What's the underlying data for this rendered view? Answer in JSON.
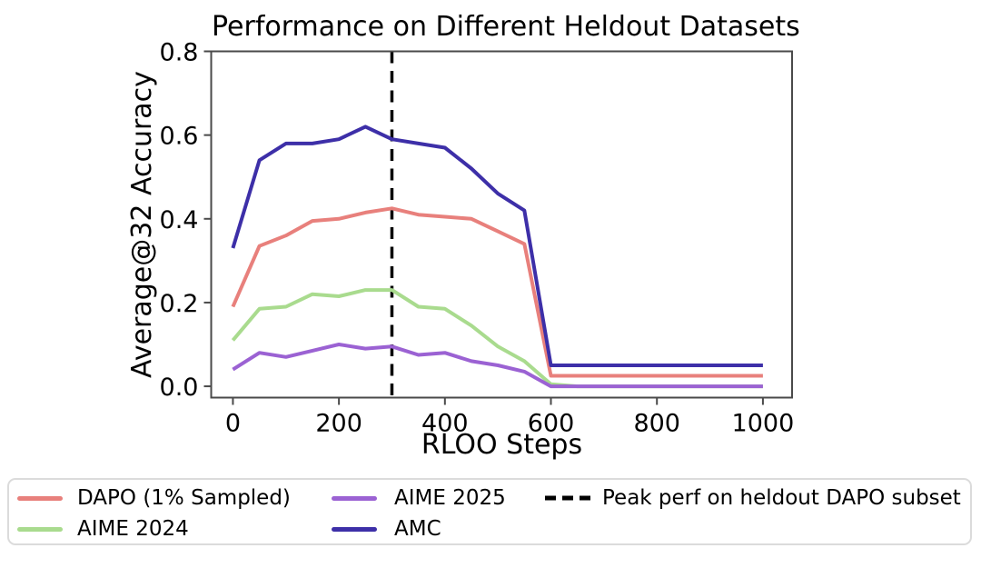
{
  "chart_data": {
    "type": "line",
    "title": "Performance on Different Heldout Datasets",
    "xlabel": "RLOO Steps",
    "ylabel": "Average@32 Accuracy",
    "x": [
      0,
      50,
      100,
      150,
      200,
      250,
      300,
      350,
      400,
      450,
      500,
      550,
      600,
      650,
      700,
      750,
      800,
      850,
      900,
      950,
      1000
    ],
    "series": [
      {
        "name": "DAPO (1% Sampled)",
        "color": "#E8807C",
        "values": [
          0.19,
          0.335,
          0.36,
          0.395,
          0.4,
          0.415,
          0.425,
          0.41,
          0.405,
          0.4,
          0.37,
          0.34,
          0.025,
          0.025,
          0.025,
          0.025,
          0.025,
          0.025,
          0.025,
          0.025,
          0.025
        ]
      },
      {
        "name": "AIME 2024",
        "color": "#A9DB8E",
        "values": [
          0.11,
          0.185,
          0.19,
          0.22,
          0.215,
          0.23,
          0.23,
          0.19,
          0.185,
          0.145,
          0.095,
          0.06,
          0.005,
          0.0,
          0.0,
          0.0,
          0.0,
          0.0,
          0.0,
          0.0,
          0.0
        ]
      },
      {
        "name": "AIME 2025",
        "color": "#9B62D3",
        "values": [
          0.04,
          0.08,
          0.07,
          0.085,
          0.1,
          0.09,
          0.095,
          0.075,
          0.08,
          0.06,
          0.05,
          0.035,
          0.0,
          0.0,
          0.0,
          0.0,
          0.0,
          0.0,
          0.0,
          0.0,
          0.0
        ]
      },
      {
        "name": "AMC",
        "color": "#3D2FA8",
        "values": [
          0.33,
          0.54,
          0.58,
          0.58,
          0.59,
          0.62,
          0.59,
          0.58,
          0.57,
          0.52,
          0.46,
          0.42,
          0.05,
          0.05,
          0.05,
          0.05,
          0.05,
          0.05,
          0.05,
          0.05,
          0.05
        ]
      }
    ],
    "vline": {
      "x": 300,
      "label": "Peak perf on heldout DAPO subset",
      "color": "#000000",
      "style": "dashed"
    },
    "xticks": [
      0,
      200,
      400,
      600,
      800,
      1000
    ],
    "yticks": [
      0.0,
      0.2,
      0.4,
      0.6,
      0.8
    ],
    "xlim": [
      -41,
      1055
    ],
    "ylim": [
      -0.027,
      0.8
    ],
    "grid": false,
    "legend_position": "bottom-outside-3-columns",
    "axis_color": "#4a4a4a",
    "text_color": "#000000"
  }
}
